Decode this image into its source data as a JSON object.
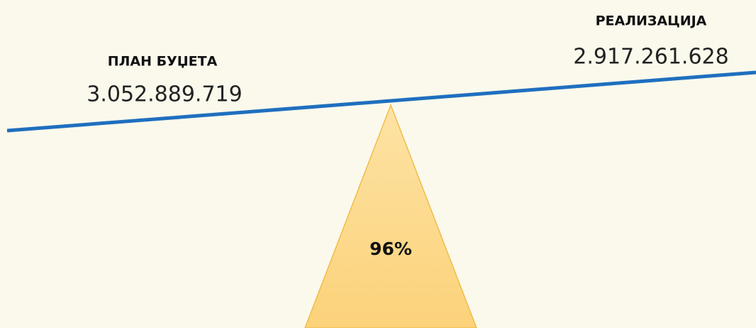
{
  "left": {
    "label": "ПЛАН БУЏЕТА",
    "value": "3.052.889.719"
  },
  "right": {
    "label": "РЕАЛИЗАЦИЈА",
    "value": "2.917.261.628"
  },
  "center": {
    "label": "96%"
  }
}
